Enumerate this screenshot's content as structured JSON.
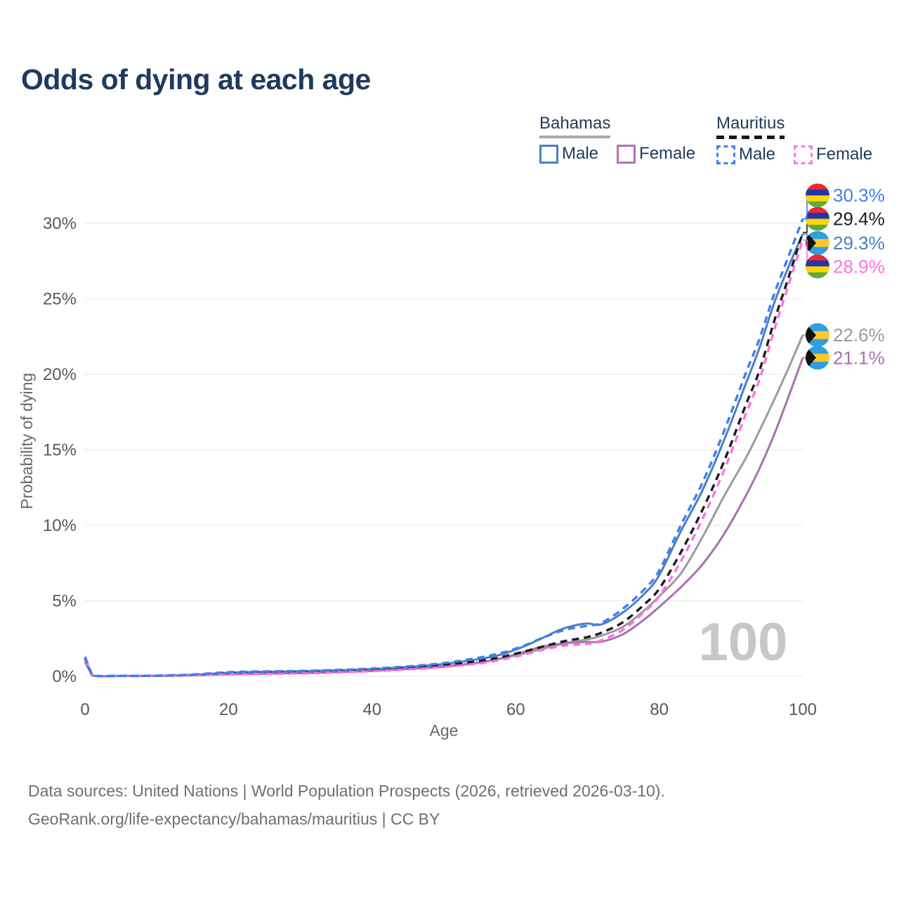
{
  "title": "Odds of dying at each age",
  "legend": {
    "groups": [
      {
        "country": "Bahamas",
        "line_style": "solid",
        "underline_color": "#a8a8a8",
        "items": [
          {
            "label": "Male",
            "color": "#4a7fc1",
            "swatch_style": "solid"
          },
          {
            "label": "Female",
            "color": "#b273b5",
            "swatch_style": "solid"
          }
        ]
      },
      {
        "country": "Mauritius",
        "line_style": "dashed",
        "underline_color": "#151515",
        "items": [
          {
            "label": "Male",
            "color": "#3e7ff2",
            "swatch_style": "dashed"
          },
          {
            "label": "Female",
            "color": "#ff77e0",
            "swatch_style": "dashed"
          }
        ]
      }
    ]
  },
  "footer": {
    "line1": "Data sources: United Nations | World Population Prospects (2026, retrieved 2026-03-10).",
    "line2": "GeoRank.org/life-expectancy/bahamas/mauritius | CC BY"
  },
  "chart_data": {
    "type": "line",
    "title": "Odds of dying at each age",
    "xlabel": "Age",
    "ylabel": "Probability of dying",
    "xlim": [
      0,
      100
    ],
    "ylim": [
      0,
      30
    ],
    "xticks": [
      0,
      20,
      40,
      60,
      80,
      100
    ],
    "yticks": [
      0,
      5,
      10,
      15,
      20,
      25,
      30
    ],
    "ytick_suffix": "%",
    "grid": true,
    "legend_position": "top-right",
    "watermark": "100",
    "axis_text_color": "#595959",
    "grid_color": "#ebebeb",
    "watermark_color": "#c7c7c7",
    "series": [
      {
        "id": "bahamas-total",
        "name": "Bahamas",
        "color": "#9c9c9c",
        "dash": false,
        "flag": "bahamas",
        "end_label": "22.6%",
        "end_value": 22.6,
        "label_at_pct": 22.6,
        "points": [
          [
            0,
            1.0
          ],
          [
            1,
            0.05
          ],
          [
            5,
            0.03
          ],
          [
            10,
            0.03
          ],
          [
            15,
            0.08
          ],
          [
            20,
            0.17
          ],
          [
            25,
            0.22
          ],
          [
            30,
            0.26
          ],
          [
            35,
            0.31
          ],
          [
            40,
            0.39
          ],
          [
            45,
            0.51
          ],
          [
            50,
            0.67
          ],
          [
            55,
            0.93
          ],
          [
            58,
            1.18
          ],
          [
            61,
            1.5
          ],
          [
            64,
            1.85
          ],
          [
            67,
            2.2
          ],
          [
            70,
            2.45
          ],
          [
            72,
            2.7
          ],
          [
            75,
            3.3
          ],
          [
            78,
            4.4
          ],
          [
            80,
            5.3
          ],
          [
            83,
            6.8
          ],
          [
            86,
            9.2
          ],
          [
            89,
            11.9
          ],
          [
            92,
            14.4
          ],
          [
            94,
            16.3
          ],
          [
            96,
            18.3
          ],
          [
            98,
            20.4
          ],
          [
            100,
            22.6
          ]
        ]
      },
      {
        "id": "bahamas-female",
        "name": "Bahamas Female",
        "color": "#a871ae",
        "dash": false,
        "flag": "bahamas",
        "end_label": "21.1%",
        "end_value": 21.1,
        "label_at_pct": 21.1,
        "points": [
          [
            0,
            0.95
          ],
          [
            1,
            0.05
          ],
          [
            5,
            0.03
          ],
          [
            10,
            0.03
          ],
          [
            15,
            0.07
          ],
          [
            20,
            0.14
          ],
          [
            25,
            0.18
          ],
          [
            30,
            0.21
          ],
          [
            35,
            0.28
          ],
          [
            40,
            0.36
          ],
          [
            45,
            0.49
          ],
          [
            50,
            0.64
          ],
          [
            55,
            0.92
          ],
          [
            58,
            1.2
          ],
          [
            61,
            1.6
          ],
          [
            64,
            2.0
          ],
          [
            67,
            2.2
          ],
          [
            70,
            2.28
          ],
          [
            72,
            2.3
          ],
          [
            75,
            2.8
          ],
          [
            78,
            3.8
          ],
          [
            80,
            4.6
          ],
          [
            83,
            5.9
          ],
          [
            86,
            7.4
          ],
          [
            89,
            9.4
          ],
          [
            92,
            11.9
          ],
          [
            94,
            13.8
          ],
          [
            96,
            16.0
          ],
          [
            98,
            18.5
          ],
          [
            100,
            21.1
          ]
        ]
      },
      {
        "id": "bahamas-male",
        "name": "Bahamas Male",
        "color": "#4a7fc1",
        "dash": false,
        "flag": "bahamas",
        "end_label": "29.3%",
        "end_value": 29.3,
        "label_at_pct": 28.7,
        "points": [
          [
            0,
            1.1
          ],
          [
            1,
            0.06
          ],
          [
            5,
            0.03
          ],
          [
            10,
            0.04
          ],
          [
            15,
            0.1
          ],
          [
            20,
            0.24
          ],
          [
            25,
            0.3
          ],
          [
            30,
            0.34
          ],
          [
            35,
            0.4
          ],
          [
            40,
            0.48
          ],
          [
            45,
            0.62
          ],
          [
            50,
            0.82
          ],
          [
            55,
            1.15
          ],
          [
            58,
            1.45
          ],
          [
            61,
            1.95
          ],
          [
            64,
            2.6
          ],
          [
            66,
            3.05
          ],
          [
            68,
            3.35
          ],
          [
            70,
            3.5
          ],
          [
            72,
            3.45
          ],
          [
            75,
            4.25
          ],
          [
            78,
            5.5
          ],
          [
            80,
            6.7
          ],
          [
            83,
            9.6
          ],
          [
            86,
            12.3
          ],
          [
            89,
            15.6
          ],
          [
            92,
            19.3
          ],
          [
            94,
            21.8
          ],
          [
            96,
            24.7
          ],
          [
            98,
            27.1
          ],
          [
            100,
            29.3
          ]
        ]
      },
      {
        "id": "mauritius-total",
        "name": "Mauritius",
        "color": "#1b1b1b",
        "dash": true,
        "flag": "mauritius",
        "end_label": "29.4%",
        "end_value": 29.4,
        "label_at_pct": 30.3,
        "points": [
          [
            0,
            1.2
          ],
          [
            1,
            0.06
          ],
          [
            5,
            0.03
          ],
          [
            10,
            0.04
          ],
          [
            15,
            0.1
          ],
          [
            20,
            0.2
          ],
          [
            25,
            0.25
          ],
          [
            30,
            0.28
          ],
          [
            35,
            0.34
          ],
          [
            40,
            0.43
          ],
          [
            45,
            0.56
          ],
          [
            50,
            0.74
          ],
          [
            55,
            1.02
          ],
          [
            58,
            1.28
          ],
          [
            61,
            1.62
          ],
          [
            64,
            2.0
          ],
          [
            67,
            2.35
          ],
          [
            70,
            2.6
          ],
          [
            72,
            2.9
          ],
          [
            75,
            3.6
          ],
          [
            78,
            4.8
          ],
          [
            80,
            5.8
          ],
          [
            83,
            8.2
          ],
          [
            86,
            11.0
          ],
          [
            89,
            14.2
          ],
          [
            92,
            17.9
          ],
          [
            94,
            20.3
          ],
          [
            96,
            23.5
          ],
          [
            98,
            26.4
          ],
          [
            100,
            29.4
          ]
        ]
      },
      {
        "id": "mauritius-female",
        "name": "Mauritius Female",
        "color": "#ff70e2",
        "dash": true,
        "flag": "mauritius",
        "end_label": "28.9%",
        "end_value": 28.9,
        "label_at_pct": 27.15,
        "points": [
          [
            0,
            1.15
          ],
          [
            1,
            0.05
          ],
          [
            5,
            0.03
          ],
          [
            10,
            0.03
          ],
          [
            15,
            0.07
          ],
          [
            20,
            0.13
          ],
          [
            25,
            0.16
          ],
          [
            30,
            0.19
          ],
          [
            35,
            0.26
          ],
          [
            40,
            0.34
          ],
          [
            45,
            0.46
          ],
          [
            50,
            0.62
          ],
          [
            55,
            0.86
          ],
          [
            58,
            1.1
          ],
          [
            61,
            1.42
          ],
          [
            64,
            1.78
          ],
          [
            67,
            2.05
          ],
          [
            70,
            2.15
          ],
          [
            72,
            2.4
          ],
          [
            75,
            3.1
          ],
          [
            78,
            4.3
          ],
          [
            80,
            5.3
          ],
          [
            83,
            7.6
          ],
          [
            86,
            10.4
          ],
          [
            89,
            13.6
          ],
          [
            92,
            17.3
          ],
          [
            94,
            19.7
          ],
          [
            96,
            22.9
          ],
          [
            98,
            25.9
          ],
          [
            100,
            28.9
          ]
        ]
      },
      {
        "id": "mauritius-male",
        "name": "Mauritius Male",
        "color": "#3e7ff2",
        "dash": true,
        "flag": "mauritius",
        "end_label": "30.3%",
        "end_value": 30.3,
        "label_at_pct": 31.85,
        "points": [
          [
            0,
            1.3
          ],
          [
            1,
            0.07
          ],
          [
            5,
            0.04
          ],
          [
            10,
            0.05
          ],
          [
            15,
            0.12
          ],
          [
            20,
            0.28
          ],
          [
            25,
            0.33
          ],
          [
            30,
            0.36
          ],
          [
            35,
            0.42
          ],
          [
            40,
            0.52
          ],
          [
            45,
            0.66
          ],
          [
            50,
            0.88
          ],
          [
            55,
            1.25
          ],
          [
            58,
            1.55
          ],
          [
            61,
            2.0
          ],
          [
            64,
            2.6
          ],
          [
            67,
            3.1
          ],
          [
            70,
            3.35
          ],
          [
            72,
            3.55
          ],
          [
            75,
            4.5
          ],
          [
            78,
            5.8
          ],
          [
            80,
            7.0
          ],
          [
            83,
            10.0
          ],
          [
            86,
            12.8
          ],
          [
            89,
            16.2
          ],
          [
            92,
            20.0
          ],
          [
            94,
            22.4
          ],
          [
            96,
            25.3
          ],
          [
            98,
            27.8
          ],
          [
            100,
            30.3
          ]
        ]
      }
    ],
    "flag_colors": {
      "bahamas": {
        "aqua": "#2e9fdf",
        "gold": "#ffc72c",
        "black": "#111111"
      },
      "mauritius": {
        "red": "#ea2839",
        "blue": "#2336a8",
        "yellow": "#ffd500",
        "green": "#60a844"
      }
    }
  }
}
